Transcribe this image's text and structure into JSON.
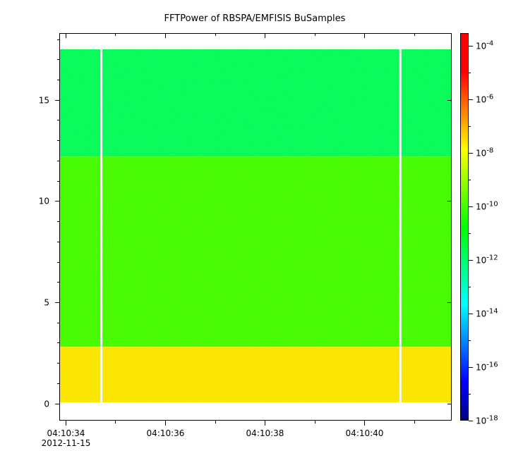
{
  "chart_data": {
    "type": "heatmap",
    "title": "FFTPower of RBSPA/EMFISIS  BuSamples",
    "xlabel": "",
    "ylabel": "",
    "x_range": [
      "04:10:33.875",
      "04:10:41.750"
    ],
    "x_ticks": [
      {
        "time": "04:10:34",
        "label": "04:10:34",
        "sublabel": "2012-11-15"
      },
      {
        "time": "04:10:36",
        "label": "04:10:36",
        "sublabel": ""
      },
      {
        "time": "04:10:38",
        "label": "04:10:38",
        "sublabel": ""
      },
      {
        "time": "04:10:40",
        "label": "04:10:40",
        "sublabel": ""
      }
    ],
    "x_minor_ticks": [
      "04:10:35",
      "04:10:37",
      "04:10:39",
      "04:10:41"
    ],
    "ylim": [
      -0.85,
      18.3
    ],
    "y_ticks": [
      0,
      5,
      10,
      15
    ],
    "data_ylim": [
      0.05,
      17.5
    ],
    "gaps": [
      {
        "start": "04:10:34.700",
        "end": "04:10:34.740"
      },
      {
        "start": "04:10:40.700",
        "end": "04:10:40.740"
      }
    ],
    "bands": [
      {
        "y0": 12.2,
        "y1": 17.5,
        "log10_power": -11.8
      },
      {
        "y0": 2.8,
        "y1": 12.2,
        "log10_power": -10.0
      },
      {
        "y0": 0.05,
        "y1": 2.8,
        "log10_power": -7.6
      }
    ],
    "colorbar": {
      "scale": "log",
      "range": [
        1e-18,
        0.0003
      ],
      "ticks": [
        {
          "value": -4,
          "base": "10",
          "exp": "-4"
        },
        {
          "value": -6,
          "base": "10",
          "exp": "-6"
        },
        {
          "value": -8,
          "base": "10",
          "exp": "-8"
        },
        {
          "value": -10,
          "base": "10",
          "exp": "-10"
        },
        {
          "value": -12,
          "base": "10",
          "exp": "-12"
        },
        {
          "value": -14,
          "base": "10",
          "exp": "-14"
        },
        {
          "value": -16,
          "base": "10",
          "exp": "-16"
        },
        {
          "value": -18,
          "base": "10",
          "exp": "-18"
        }
      ],
      "colors": [
        "#00007f",
        "#0000ff",
        "#007fff",
        "#00ffff",
        "#00ff80",
        "#00ff00",
        "#80ff00",
        "#ffff00",
        "#ff8000",
        "#ff0000",
        "#ff0000"
      ]
    }
  }
}
